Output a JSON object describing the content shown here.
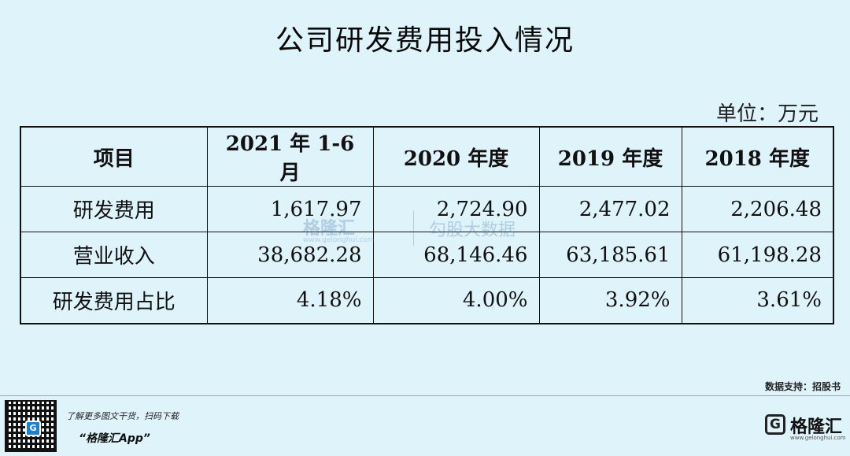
{
  "title": "公司研发费用投入情况",
  "unit": "单位：万元",
  "table": {
    "headers": [
      "项目",
      "2021 年 1-6 月",
      "2020 年度",
      "2019 年度",
      "2018 年度"
    ],
    "rows": [
      [
        "研发费用",
        "1,617.97",
        "2,724.90",
        "2,477.02",
        "2,206.48"
      ],
      [
        "营业收入",
        "38,682.28",
        "68,146.46",
        "63,185.61",
        "61,198.28"
      ],
      [
        "研发费用占比",
        "4.18%",
        "4.00%",
        "3.92%",
        "3.61%"
      ]
    ]
  },
  "watermark": {
    "brand": "格隆汇",
    "domain": "www.gelonghui.com",
    "sub_brand": "勾股大数据"
  },
  "source": "数据支持：招股书",
  "footer": {
    "promo_line1": "了解更多图文干货，扫码下载",
    "promo_line2": "“格隆汇App”",
    "brand_name": "格隆汇",
    "brand_domain": "www.gelonghui.com",
    "qr_icon": "qr-code-icon",
    "logo_icon": "gelonghui-logo-icon"
  }
}
